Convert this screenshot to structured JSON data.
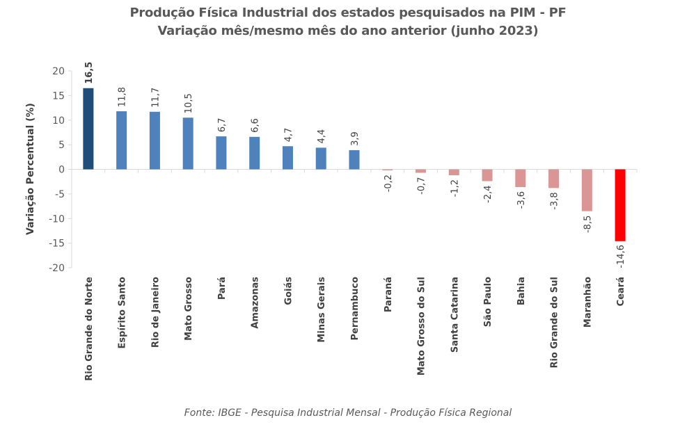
{
  "chart_data": {
    "type": "bar",
    "title": "Produção Física Industrial dos estados pesquisados na PIM - PF",
    "subtitle": "Variação mês/mesmo mês do ano anterior (junho 2023)",
    "xlabel": "",
    "ylabel": "Variação Percentual (%)",
    "ylim": [
      -20,
      20
    ],
    "yticks": [
      20,
      15,
      10,
      5,
      0,
      -5,
      -10,
      -15,
      -20
    ],
    "grid": false,
    "legend": "none",
    "categories": [
      "Rio Grande do Norte",
      "Espírito Santo",
      "Rio de Janeiro",
      "Mato Grosso",
      "Pará",
      "Amazonas",
      "Goiás",
      "Minas Gerais",
      "Pernambuco",
      "Paraná",
      "Mato Grosso do Sul",
      "Santa Catarina",
      "São Paulo",
      "Bahia",
      "Rio Grande do Sul",
      "Maranhão",
      "Ceará"
    ],
    "values": [
      16.5,
      11.8,
      11.7,
      10.5,
      6.7,
      6.6,
      4.7,
      4.4,
      3.9,
      -0.2,
      -0.7,
      -1.2,
      -2.4,
      -3.6,
      -3.8,
      -8.5,
      -14.6
    ],
    "data_labels": [
      "16,5",
      "11,8",
      "11,7",
      "10,5",
      "6,7",
      "6,6",
      "4,7",
      "4,4",
      "3,9",
      "-0,2",
      "-0,7",
      "-1,2",
      "-2,4",
      "-3,6",
      "-3,8",
      "-8,5",
      "-14,6"
    ],
    "colors": {
      "max": "#1f4e79",
      "positive": "#4f81bd",
      "negative": "#d99694",
      "min": "#ff0000"
    },
    "source": "Fonte: IBGE - Pesquisa Industrial Mensal - Produção Física Regional"
  }
}
